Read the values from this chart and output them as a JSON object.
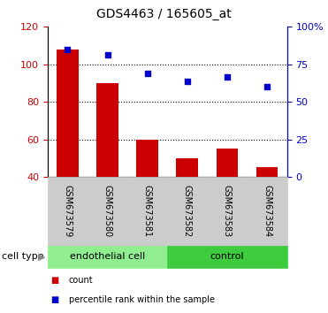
{
  "title": "GDS4463 / 165605_at",
  "categories": [
    "GSM673579",
    "GSM673580",
    "GSM673581",
    "GSM673582",
    "GSM673583",
    "GSM673584"
  ],
  "bar_values": [
    108,
    90,
    60,
    50,
    55,
    45
  ],
  "scatter_values_left": [
    108,
    105,
    95,
    91,
    93,
    88
  ],
  "cell_type_groups": [
    {
      "label": "endothelial cell",
      "indices": [
        0,
        1,
        2
      ],
      "color": "#90EE90"
    },
    {
      "label": "control",
      "indices": [
        3,
        4,
        5
      ],
      "color": "#3ECC3E"
    }
  ],
  "left_ylim": [
    40,
    120
  ],
  "left_yticks": [
    40,
    60,
    80,
    100,
    120
  ],
  "right_ylim": [
    0,
    100
  ],
  "right_yticks": [
    0,
    25,
    50,
    75,
    100
  ],
  "right_yticklabels": [
    "0",
    "25",
    "50",
    "75",
    "100%"
  ],
  "bar_color": "#CC0000",
  "scatter_color": "#0000CC",
  "left_tick_color": "#CC0000",
  "right_tick_color": "#0000CC",
  "grid_yticks": [
    100,
    80,
    60
  ],
  "cell_type_label": "cell type",
  "legend_count_label": "count",
  "legend_pct_label": "percentile rank within the sample",
  "bar_width": 0.55,
  "title_fontsize": 10,
  "tick_fontsize": 8,
  "label_fontsize": 8
}
